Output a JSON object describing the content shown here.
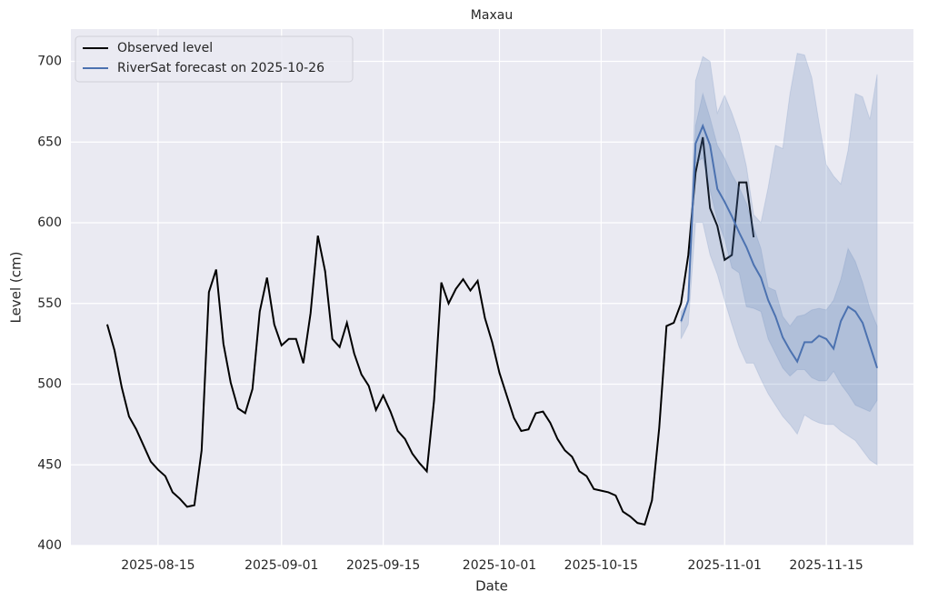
{
  "chart_data": {
    "type": "line",
    "title": "Maxau",
    "xlabel": "Date",
    "ylabel": "Level (cm)",
    "xlim": [
      "2025-08-03",
      "2025-11-27"
    ],
    "ylim": [
      400,
      720
    ],
    "xticks": [
      "2025-08-15",
      "2025-09-01",
      "2025-09-15",
      "2025-10-01",
      "2025-10-15",
      "2025-11-01",
      "2025-11-15"
    ],
    "yticks": [
      400,
      450,
      500,
      550,
      600,
      650,
      700
    ],
    "grid": true,
    "legend": "upper left",
    "series": [
      {
        "name": "Observed level",
        "color": "#000000",
        "x": [
          "2025-08-08",
          "2025-08-09",
          "2025-08-10",
          "2025-08-11",
          "2025-08-12",
          "2025-08-13",
          "2025-08-14",
          "2025-08-15",
          "2025-08-16",
          "2025-08-17",
          "2025-08-18",
          "2025-08-19",
          "2025-08-20",
          "2025-08-21",
          "2025-08-22",
          "2025-08-23",
          "2025-08-24",
          "2025-08-25",
          "2025-08-26",
          "2025-08-27",
          "2025-08-28",
          "2025-08-29",
          "2025-08-30",
          "2025-08-31",
          "2025-09-01",
          "2025-09-02",
          "2025-09-03",
          "2025-09-04",
          "2025-09-05",
          "2025-09-06",
          "2025-09-07",
          "2025-09-08",
          "2025-09-09",
          "2025-09-10",
          "2025-09-11",
          "2025-09-12",
          "2025-09-13",
          "2025-09-14",
          "2025-09-15",
          "2025-09-16",
          "2025-09-17",
          "2025-09-18",
          "2025-09-19",
          "2025-09-20",
          "2025-09-21",
          "2025-09-22",
          "2025-09-23",
          "2025-09-24",
          "2025-09-25",
          "2025-09-26",
          "2025-09-27",
          "2025-09-28",
          "2025-09-29",
          "2025-09-30",
          "2025-10-01",
          "2025-10-02",
          "2025-10-03",
          "2025-10-04",
          "2025-10-05",
          "2025-10-06",
          "2025-10-07",
          "2025-10-08",
          "2025-10-09",
          "2025-10-10",
          "2025-10-11",
          "2025-10-12",
          "2025-10-13",
          "2025-10-14",
          "2025-10-15",
          "2025-10-16",
          "2025-10-17",
          "2025-10-18",
          "2025-10-19",
          "2025-10-20",
          "2025-10-21",
          "2025-10-22",
          "2025-10-23",
          "2025-10-24",
          "2025-10-25",
          "2025-10-26",
          "2025-10-27",
          "2025-10-28",
          "2025-10-29",
          "2025-10-30",
          "2025-10-31",
          "2025-11-01",
          "2025-11-02",
          "2025-11-03",
          "2025-11-04",
          "2025-11-05"
        ],
        "values": [
          537,
          521,
          498,
          480,
          472,
          462,
          452,
          447,
          443,
          433,
          429,
          424,
          425,
          459,
          557,
          571,
          525,
          501,
          485,
          482,
          497,
          545,
          566,
          537,
          524,
          528,
          528,
          513,
          544,
          592,
          570,
          528,
          523,
          538,
          519,
          506,
          499,
          484,
          493,
          483,
          471,
          466,
          457,
          451,
          446,
          490,
          563,
          550,
          559,
          565,
          558,
          564,
          541,
          526,
          507,
          493,
          479,
          471,
          472,
          482,
          483,
          476,
          466,
          459,
          455,
          446,
          443,
          435,
          434,
          433,
          431,
          421,
          418,
          414,
          413,
          428,
          473,
          536,
          538,
          550,
          580,
          631,
          653,
          609,
          598,
          577,
          580,
          625,
          625,
          591
        ]
      },
      {
        "name": "RiverSat forecast on 2025-10-26",
        "color": "#4c72b0",
        "x": [
          "2025-10-26",
          "2025-10-27",
          "2025-10-28",
          "2025-10-29",
          "2025-10-30",
          "2025-10-31",
          "2025-11-01",
          "2025-11-02",
          "2025-11-03",
          "2025-11-04",
          "2025-11-05",
          "2025-11-06",
          "2025-11-07",
          "2025-11-08",
          "2025-11-09",
          "2025-11-10",
          "2025-11-11",
          "2025-11-12",
          "2025-11-13",
          "2025-11-14",
          "2025-11-15",
          "2025-11-16",
          "2025-11-17",
          "2025-11-18",
          "2025-11-19",
          "2025-11-20",
          "2025-11-21",
          "2025-11-22"
        ],
        "values": [
          539,
          552,
          649,
          660,
          648,
          621,
          613,
          604,
          594,
          585,
          574,
          566,
          552,
          542,
          529,
          521,
          514,
          526,
          526,
          530,
          528,
          522,
          539,
          548,
          545,
          538,
          524,
          510
        ],
        "bands": [
          {
            "upper": [
              545,
              550,
              688,
              703,
              700,
              668,
              679,
              668,
              655,
              635,
              605,
              600,
              622,
              648,
              646,
              680,
              705,
              704,
              690,
              662,
              636,
              629,
              624,
              645,
              680,
              678,
              664,
              692
            ],
            "lower": [
              528,
              537,
              600,
              600,
              580,
              568,
              552,
              537,
              523,
              513,
              513,
              503,
              494,
              487,
              480,
              475,
              469,
              481,
              478,
              476,
              475,
              475,
              471,
              468,
              465,
              459,
              453,
              450
            ]
          },
          {
            "upper": [
              540,
              552,
              660,
              680,
              665,
              648,
              640,
              630,
              622,
              612,
              597,
              584,
              560,
              558,
              542,
              536,
              542,
              543,
              546,
              547,
              546,
              552,
              565,
              584,
              576,
              563,
              547,
              536
            ],
            "lower": [
              538,
              551,
              637,
              640,
              620,
              602,
              590,
              572,
              569,
              548,
              547,
              545,
              528,
              519,
              510,
              505,
              509,
              509,
              504,
              502,
              502,
              508,
              500,
              494,
              487,
              485,
              483,
              490
            ]
          }
        ]
      }
    ]
  }
}
